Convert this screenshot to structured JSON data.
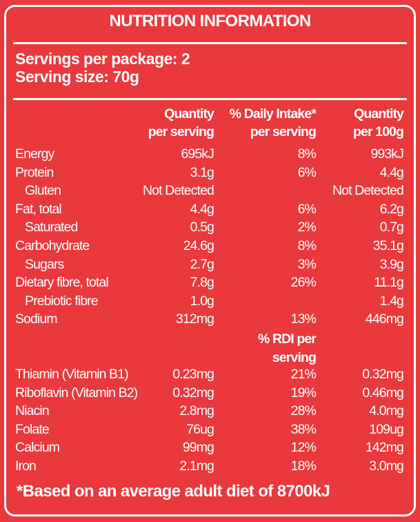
{
  "title": "NUTRITION INFORMATION",
  "servings_per_package": "Servings per package: 2",
  "serving_size": "Serving size: 70g",
  "headers": {
    "col1_line1": "Quantity",
    "col1_line2": "per serving",
    "col2_line1": "% Daily Intake*",
    "col2_line2": "per serving",
    "col3_line1": "Quantity",
    "col3_line2": "per 100g"
  },
  "nutrients": [
    {
      "label": "Energy",
      "indent": false,
      "per_serving": "695kJ",
      "daily_intake": "8%",
      "per_100g": "993kJ"
    },
    {
      "label": "Protein",
      "indent": false,
      "per_serving": "3.1g",
      "daily_intake": "6%",
      "per_100g": "4.4g"
    },
    {
      "label": "Gluten",
      "indent": true,
      "per_serving": "Not Detected",
      "daily_intake": "",
      "per_100g": "Not Detected"
    },
    {
      "label": "Fat, total",
      "indent": false,
      "per_serving": "4.4g",
      "daily_intake": "6%",
      "per_100g": "6.2g"
    },
    {
      "label": "Saturated",
      "indent": true,
      "per_serving": "0.5g",
      "daily_intake": "2%",
      "per_100g": "0.7g"
    },
    {
      "label": "Carbohydrate",
      "indent": false,
      "per_serving": "24.6g",
      "daily_intake": "8%",
      "per_100g": "35.1g"
    },
    {
      "label": "Sugars",
      "indent": true,
      "per_serving": "2.7g",
      "daily_intake": "3%",
      "per_100g": "3.9g"
    },
    {
      "label": "Dietary fibre, total",
      "indent": false,
      "per_serving": "7.8g",
      "daily_intake": "26%",
      "per_100g": "11.1g"
    },
    {
      "label": "Prebiotic fibre",
      "indent": true,
      "per_serving": "1.0g",
      "daily_intake": "",
      "per_100g": "1.4g"
    },
    {
      "label": "Sodium",
      "indent": false,
      "per_serving": "312mg",
      "daily_intake": "13%",
      "per_100g": "446mg"
    }
  ],
  "rdi_header": {
    "line1": "% RDI per",
    "line2": "serving"
  },
  "vitamins": [
    {
      "label": "Thiamin (Vitamin B1)",
      "per_serving": "0.23mg",
      "rdi": "21%",
      "per_100g": "0.32mg"
    },
    {
      "label": "Riboflavin (Vitamin B2)",
      "per_serving": "0.32mg",
      "rdi": "19%",
      "per_100g": "0.46mg"
    },
    {
      "label": "Niacin",
      "per_serving": "2.8mg",
      "rdi": "28%",
      "per_100g": "4.0mg"
    },
    {
      "label": "Folate",
      "per_serving": "76ug",
      "rdi": "38%",
      "per_100g": "109ug"
    },
    {
      "label": "Calcium",
      "per_serving": "99mg",
      "rdi": "12%",
      "per_100g": "142mg"
    },
    {
      "label": "Iron",
      "per_serving": "2.1mg",
      "rdi": "18%",
      "per_100g": "3.0mg"
    }
  ],
  "footnote": "*Based on an average adult diet of 8700kJ"
}
